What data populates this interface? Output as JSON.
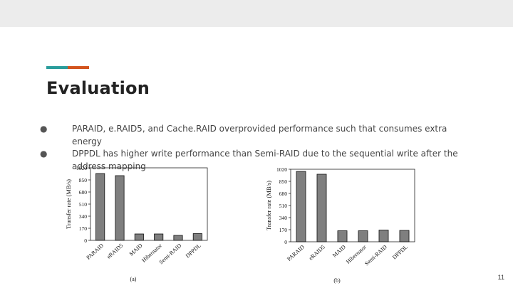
{
  "slide": {
    "title": "Evaluation",
    "bullets": [
      "PARAID, e.RAID5, and Cache.RAID overprovided performance such that consumes extra energy",
      "DPPDL has higher write performance than Semi-RAID due to the sequential write after the address mapping"
    ],
    "bullet_icon": "bullet-dot-icon",
    "page_number": "11",
    "colors": {
      "accent_teal": "#2a9d9c",
      "accent_orange": "#d3541e",
      "bar_fill": "#7f7f7f"
    }
  },
  "chart_data": [
    {
      "type": "bar",
      "categories": [
        "PARAID",
        "eRAID5",
        "MAID",
        "Hibernator",
        "Semi-RAID",
        "DPPDL"
      ],
      "values": [
        940,
        910,
        90,
        90,
        70,
        95
      ],
      "ylabel": "Transfer rate (MB/s)",
      "yticks": [
        "0",
        "170",
        "340",
        "510",
        "680",
        "850",
        "1020"
      ],
      "ylim": [
        0,
        1020
      ],
      "caption": "(a)",
      "grid": false
    },
    {
      "type": "bar",
      "categories": [
        "PARAID",
        "eRAID5",
        "MAID",
        "Hibernator",
        "Semi-RAID",
        "DPPDL"
      ],
      "values": [
        990,
        950,
        155,
        155,
        165,
        160
      ],
      "ylabel": "Transfer rate (MB/s)",
      "yticks": [
        "0",
        "170",
        "340",
        "510",
        "680",
        "850",
        "1020"
      ],
      "ylim": [
        0,
        1020
      ],
      "caption": "(b)",
      "grid": false
    }
  ]
}
